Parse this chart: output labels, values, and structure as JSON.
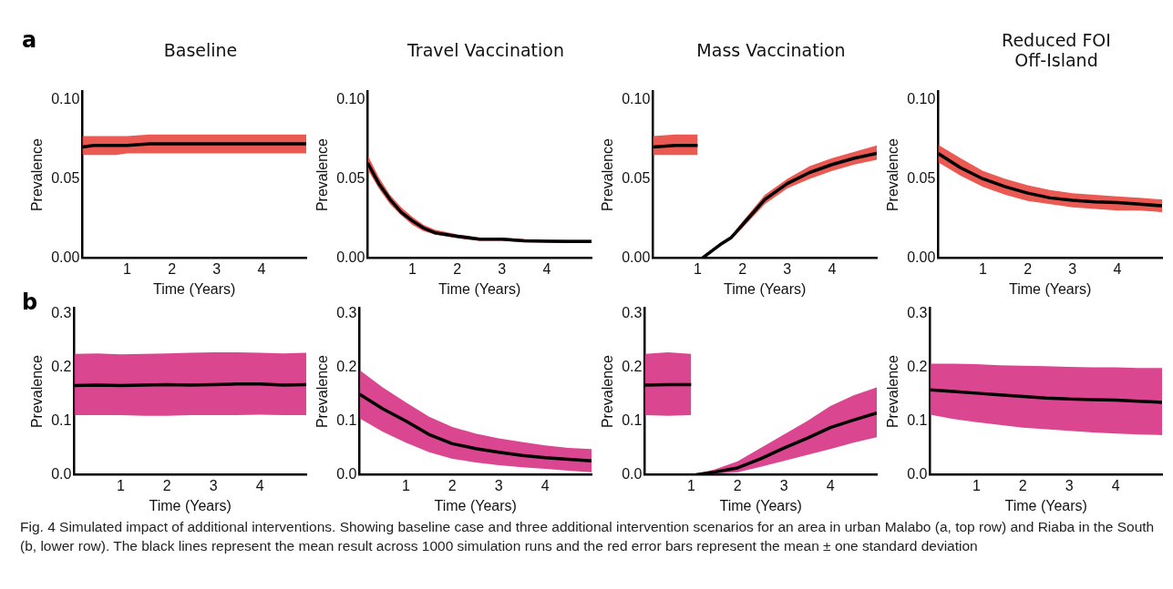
{
  "chart_data": [
    {
      "type": "line",
      "title": "Baseline",
      "xlabel": "Time (Years)",
      "ylabel": "Prevalence",
      "annotations": [
        "a"
      ],
      "color": "#e8483f",
      "x": [
        0,
        0.25,
        0.5,
        0.75,
        1,
        1.5,
        2,
        2.5,
        3,
        3.5,
        4,
        4.5,
        5
      ],
      "xlim": [
        0,
        5
      ],
      "xticks": [
        1,
        2,
        3,
        4
      ],
      "ylim": [
        0,
        0.105
      ],
      "yticks": [
        {
          "value": 0,
          "label": "0.00"
        },
        {
          "value": 0.05,
          "label": "0.05"
        },
        {
          "value": 0.1,
          "label": "0.10"
        }
      ],
      "grid": false,
      "legend": false,
      "series": [
        {
          "color": "#000000",
          "values": [
            0.07,
            0.071,
            0.071,
            0.071,
            0.071,
            0.072,
            0.072,
            0.072,
            0.072,
            0.072,
            0.072,
            0.072,
            0.072
          ],
          "lower": [
            0.065,
            0.065,
            0.065,
            0.065,
            0.066,
            0.066,
            0.066,
            0.066,
            0.066,
            0.066,
            0.066,
            0.066,
            0.066
          ],
          "upper": [
            0.077,
            0.077,
            0.077,
            0.077,
            0.077,
            0.078,
            0.078,
            0.078,
            0.078,
            0.078,
            0.078,
            0.078,
            0.078
          ]
        }
      ]
    },
    {
      "type": "line",
      "title": "Travel Vaccination",
      "xlabel": "Time (Years)",
      "ylabel": "Prevalence",
      "color": "#e8483f",
      "x": [
        0,
        0.25,
        0.5,
        0.75,
        1,
        1.25,
        1.5,
        2,
        2.5,
        3,
        3.5,
        4,
        4.5,
        5
      ],
      "xlim": [
        0,
        5
      ],
      "xticks": [
        1,
        2,
        3,
        4
      ],
      "ylim": [
        0,
        0.105
      ],
      "yticks": [
        {
          "value": 0,
          "label": "0.00"
        },
        {
          "value": 0.05,
          "label": "0.05"
        },
        {
          "value": 0.1,
          "label": "0.10"
        }
      ],
      "grid": false,
      "legend": false,
      "series": [
        {
          "color": "#000000",
          "values": [
            0.06,
            0.047,
            0.037,
            0.029,
            0.0235,
            0.019,
            0.016,
            0.0138,
            0.012,
            0.012,
            0.011,
            0.0107,
            0.0105,
            0.0105
          ],
          "lower": [
            0.056,
            0.044,
            0.034,
            0.027,
            0.021,
            0.017,
            0.015,
            0.0125,
            0.011,
            0.011,
            0.01,
            0.01,
            0.0095,
            0.0095
          ],
          "upper": [
            0.065,
            0.051,
            0.04,
            0.032,
            0.026,
            0.021,
            0.018,
            0.015,
            0.013,
            0.013,
            0.012,
            0.0115,
            0.0115,
            0.0115
          ]
        }
      ]
    },
    {
      "type": "line",
      "title": "Mass Vaccination",
      "xlabel": "Time (Years)",
      "ylabel": "Prevalence",
      "color": "#e8483f",
      "x": [
        0,
        0.5,
        1,
        1.05,
        1.1,
        1.5,
        1.75,
        2,
        2.5,
        3,
        3.5,
        4,
        4.5,
        5
      ],
      "xlim": [
        0,
        5
      ],
      "xticks": [
        1,
        2,
        3,
        4
      ],
      "ylim": [
        0,
        0.105
      ],
      "yticks": [
        {
          "value": 0,
          "label": "0.00"
        },
        {
          "value": 0.05,
          "label": "0.05"
        },
        {
          "value": 0.1,
          "label": "0.10"
        }
      ],
      "grid": false,
      "legend": false,
      "series": [
        {
          "color": "#000000",
          "values": [
            0.07,
            0.071,
            0.071,
            null,
            0,
            0.0085,
            0.013,
            0.021,
            0.037,
            0.047,
            0.054,
            0.059,
            0.063,
            0.066
          ],
          "lower": [
            0.065,
            0.065,
            0.065,
            null,
            0,
            0.0075,
            0.012,
            0.019,
            0.034,
            0.044,
            0.05,
            0.055,
            0.059,
            0.062
          ],
          "upper": [
            0.077,
            0.078,
            0.078,
            null,
            0.001,
            0.0095,
            0.014,
            0.023,
            0.04,
            0.05,
            0.058,
            0.063,
            0.067,
            0.071
          ]
        }
      ]
    },
    {
      "type": "line",
      "title": "Reduced FOI\nOff-Island",
      "xlabel": "Time (Years)",
      "ylabel": "Prevalence",
      "color": "#e8483f",
      "x": [
        0,
        0.5,
        1,
        1.5,
        2,
        2.5,
        3,
        3.5,
        4,
        4.5,
        5
      ],
      "xlim": [
        0,
        5
      ],
      "xticks": [
        1,
        2,
        3,
        4
      ],
      "ylim": [
        0,
        0.105
      ],
      "yticks": [
        {
          "value": 0,
          "label": "0.00"
        },
        {
          "value": 0.05,
          "label": "0.05"
        },
        {
          "value": 0.1,
          "label": "0.10"
        }
      ],
      "grid": false,
      "legend": false,
      "series": [
        {
          "color": "#000000",
          "values": [
            0.066,
            0.057,
            0.05,
            0.045,
            0.041,
            0.038,
            0.0365,
            0.0355,
            0.035,
            0.034,
            0.033
          ],
          "lower": [
            0.0605,
            0.052,
            0.045,
            0.04,
            0.036,
            0.034,
            0.032,
            0.031,
            0.03,
            0.03,
            0.029
          ],
          "upper": [
            0.0715,
            0.063,
            0.055,
            0.05,
            0.046,
            0.043,
            0.041,
            0.04,
            0.039,
            0.038,
            0.037
          ]
        }
      ]
    },
    {
      "type": "line",
      "xlabel": "Time (Years)",
      "ylabel": "Prevalence",
      "annotations": [
        "b"
      ],
      "color": "#d63384",
      "x": [
        0,
        0.5,
        1,
        1.5,
        2,
        2.5,
        3,
        3.5,
        4,
        4.5,
        5
      ],
      "xlim": [
        0,
        5
      ],
      "xticks": [
        1,
        2,
        3,
        4
      ],
      "ylim": [
        0,
        0.31
      ],
      "yticks": [
        {
          "value": 0,
          "label": "0.0"
        },
        {
          "value": 0.1,
          "label": "0.1"
        },
        {
          "value": 0.2,
          "label": "0.2"
        },
        {
          "value": 0.3,
          "label": "0.3"
        }
      ],
      "grid": false,
      "legend": false,
      "series": [
        {
          "color": "#000000",
          "values": [
            0.166,
            0.167,
            0.166,
            0.167,
            0.168,
            0.167,
            0.168,
            0.169,
            0.169,
            0.167,
            0.168
          ],
          "lower": [
            0.111,
            0.111,
            0.111,
            0.11,
            0.11,
            0.111,
            0.111,
            0.111,
            0.112,
            0.111,
            0.111
          ],
          "upper": [
            0.225,
            0.226,
            0.224,
            0.225,
            0.226,
            0.227,
            0.228,
            0.228,
            0.227,
            0.226,
            0.227
          ]
        }
      ]
    },
    {
      "type": "line",
      "xlabel": "Time (Years)",
      "ylabel": "Prevalence",
      "color": "#d63384",
      "x": [
        0,
        0.5,
        1,
        1.5,
        2,
        2.5,
        3,
        3.5,
        4,
        4.5,
        5
      ],
      "xlim": [
        0,
        5
      ],
      "xticks": [
        1,
        2,
        3,
        4
      ],
      "ylim": [
        0,
        0.31
      ],
      "yticks": [
        {
          "value": 0,
          "label": "0.0"
        },
        {
          "value": 0.1,
          "label": "0.1"
        },
        {
          "value": 0.2,
          "label": "0.2"
        },
        {
          "value": 0.3,
          "label": "0.3"
        }
      ],
      "grid": false,
      "legend": false,
      "series": [
        {
          "color": "#000000",
          "values": [
            0.15,
            0.123,
            0.1,
            0.075,
            0.058,
            0.049,
            0.042,
            0.036,
            0.032,
            0.029,
            0.026
          ],
          "lower": [
            0.105,
            0.08,
            0.06,
            0.042,
            0.03,
            0.023,
            0.018,
            0.014,
            0.011,
            0.008,
            0.005
          ],
          "upper": [
            0.195,
            0.163,
            0.135,
            0.108,
            0.089,
            0.077,
            0.068,
            0.061,
            0.055,
            0.05,
            0.048
          ]
        }
      ]
    },
    {
      "type": "line",
      "xlabel": "Time (Years)",
      "ylabel": "Prevalence",
      "color": "#d63384",
      "x": [
        0,
        0.5,
        1,
        1.05,
        1.1,
        1.5,
        2,
        2.5,
        3,
        3.5,
        4,
        4.5,
        5
      ],
      "xlim": [
        0,
        5
      ],
      "xticks": [
        1,
        2,
        3,
        4
      ],
      "ylim": [
        0,
        0.31
      ],
      "yticks": [
        {
          "value": 0,
          "label": "0.0"
        },
        {
          "value": 0.1,
          "label": "0.1"
        },
        {
          "value": 0.2,
          "label": "0.2"
        },
        {
          "value": 0.3,
          "label": "0.3"
        }
      ],
      "grid": false,
      "legend": false,
      "series": [
        {
          "color": "#000000",
          "values": [
            0.167,
            0.168,
            0.168,
            null,
            0,
            0.005,
            0.013,
            0.03,
            0.05,
            0.068,
            0.088,
            0.102,
            0.115
          ],
          "lower": [
            0.111,
            0.11,
            0.111,
            null,
            0,
            0.002,
            0.005,
            0.015,
            0.026,
            0.037,
            0.048,
            0.06,
            0.07
          ],
          "upper": [
            0.225,
            0.228,
            0.225,
            null,
            0.002,
            0.01,
            0.025,
            0.05,
            0.075,
            0.1,
            0.128,
            0.148,
            0.163
          ]
        }
      ]
    },
    {
      "type": "line",
      "xlabel": "Time (Years)",
      "ylabel": "Prevalence",
      "color": "#d63384",
      "x": [
        0,
        0.5,
        1,
        1.5,
        2,
        2.5,
        3,
        3.5,
        4,
        4.5,
        5
      ],
      "xlim": [
        0,
        5
      ],
      "xticks": [
        1,
        2,
        3,
        4
      ],
      "ylim": [
        0,
        0.31
      ],
      "yticks": [
        {
          "value": 0,
          "label": "0.0"
        },
        {
          "value": 0.1,
          "label": "0.1"
        },
        {
          "value": 0.2,
          "label": "0.2"
        },
        {
          "value": 0.3,
          "label": "0.3"
        }
      ],
      "grid": false,
      "legend": false,
      "series": [
        {
          "color": "#000000",
          "values": [
            0.158,
            0.155,
            0.152,
            0.149,
            0.146,
            0.143,
            0.141,
            0.14,
            0.139,
            0.137,
            0.135
          ],
          "lower": [
            0.112,
            0.104,
            0.098,
            0.093,
            0.088,
            0.085,
            0.082,
            0.079,
            0.077,
            0.075,
            0.074
          ],
          "upper": [
            0.207,
            0.207,
            0.206,
            0.204,
            0.203,
            0.202,
            0.201,
            0.2,
            0.2,
            0.199,
            0.199
          ]
        }
      ]
    },
    {
      "type": "other",
      "annotations": [
        "Fig. 4  Simulated impact of additional interventions. Showing baseline case and three additional intervention scenarios for an area in urban Malabo (a, top row) and Riaba in the South (b, lower row). The black lines represent the mean result across 1000 simulation runs and the red error bars represent the mean ± one standard deviation"
      ]
    }
  ]
}
